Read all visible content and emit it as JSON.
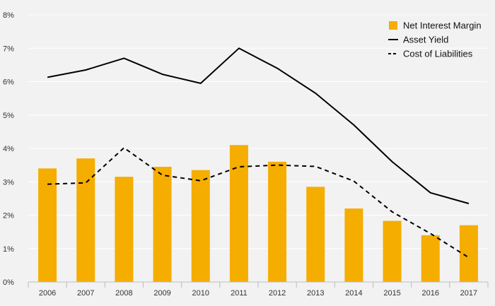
{
  "chart_data": {
    "type": "bar",
    "title": "",
    "xlabel": "",
    "ylabel": "",
    "ylim": [
      0,
      8
    ],
    "y_ticks": [
      "0%",
      "1%",
      "2%",
      "3%",
      "4%",
      "5%",
      "6%",
      "7%",
      "8%"
    ],
    "y_tick_values": [
      0,
      1,
      2,
      3,
      4,
      5,
      6,
      7,
      8
    ],
    "grid": true,
    "legend_position": "top-right",
    "categories": [
      "2006",
      "2007",
      "2008",
      "2009",
      "2010",
      "2011",
      "2012",
      "2013",
      "2014",
      "2015",
      "2016",
      "2017"
    ],
    "series": [
      {
        "name": "Net Interest Margin",
        "type": "bar",
        "color": "#f5ad00",
        "values": [
          3.4,
          3.7,
          3.15,
          3.45,
          3.35,
          4.1,
          3.6,
          2.85,
          2.2,
          1.83,
          1.4,
          1.7
        ]
      },
      {
        "name": "Asset Yield",
        "type": "line",
        "style": "solid",
        "color": "#000000",
        "values": [
          6.13,
          6.35,
          6.7,
          6.22,
          5.95,
          7.0,
          6.4,
          5.65,
          4.7,
          3.6,
          2.67,
          2.35
        ]
      },
      {
        "name": "Cost of Liabilities",
        "type": "line",
        "style": "dashed",
        "color": "#000000",
        "values": [
          2.93,
          2.97,
          4.02,
          3.2,
          3.03,
          3.45,
          3.5,
          3.46,
          3.02,
          2.1,
          1.45,
          0.73
        ]
      }
    ]
  }
}
